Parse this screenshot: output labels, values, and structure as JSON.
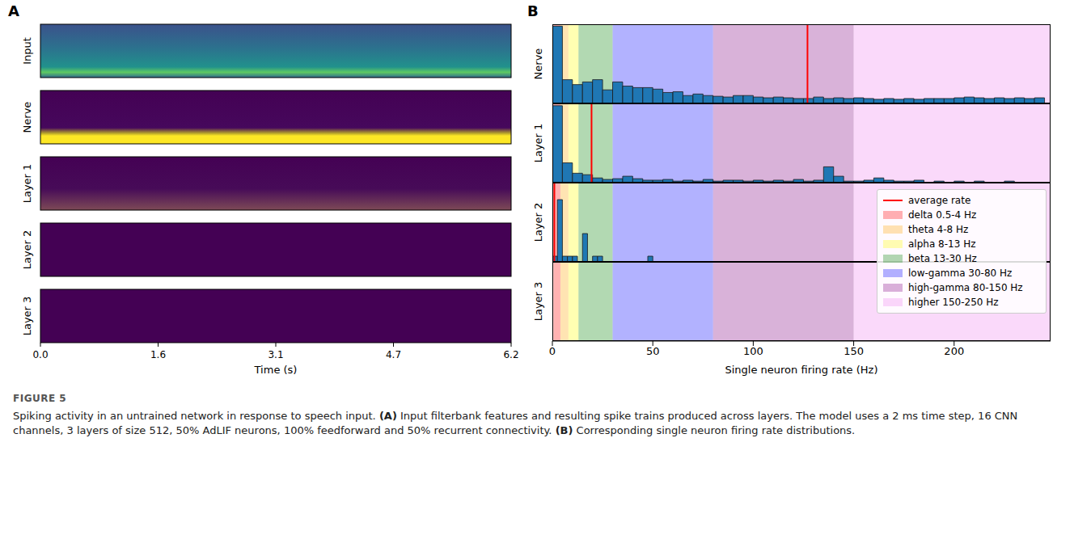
{
  "figure_label": "FIGURE 5",
  "caption": "Spiking activity in an untrained network in response to speech input. (A) Input filterbank features and resulting spike trains produced across layers. The model uses a 2 ms time step, 16 CNN channels, 3 layers of size 512, 50% AdLIF neurons, 100% feedforward and 50% recurrent connectivity. (B) Corresponding single neuron firing rate distributions.",
  "chart_data": [
    {
      "type": "raster",
      "panel_label": "A",
      "rows": [
        "Input",
        "Nerve",
        "Layer 1",
        "Layer 2",
        "Layer 3"
      ],
      "x_label": "Time (s)",
      "xlim": [
        0,
        6.2
      ],
      "xticks": [
        {
          "value": 0,
          "label": "0.0"
        },
        {
          "value": 1.55,
          "label": "1.6"
        },
        3.1,
        {
          "value": 4.65,
          "label": "4.7"
        },
        6.2
      ],
      "tick_labels": "x"
    },
    {
      "type": "histogram",
      "panel_label": "B",
      "x_label": "Single neuron firing rate (Hz)",
      "xlim": [
        0,
        248
      ],
      "xticks": [
        0,
        50,
        100,
        150,
        200
      ],
      "tick_labels": "x",
      "color": "#1f77b4",
      "legend": "right",
      "average_rate_label": "average rate",
      "average_rate_color": "red",
      "bands": [
        {
          "name": "delta 0.5-4 Hz",
          "range": [
            0.5,
            4
          ],
          "color": "red"
        },
        {
          "name": "theta 4-8 Hz",
          "range": [
            4,
            8
          ],
          "color": "orange"
        },
        {
          "name": "alpha 8-13 Hz",
          "range": [
            8,
            13
          ],
          "color": "yellow"
        },
        {
          "name": "beta 13-30 Hz",
          "range": [
            13,
            30
          ],
          "color": "green"
        },
        {
          "name": "low-gamma 30-80 Hz",
          "range": [
            30,
            80
          ],
          "color": "blue"
        },
        {
          "name": "high-gamma 80-150 Hz",
          "range": [
            80,
            150
          ],
          "color": "purple"
        },
        {
          "name": "higher 150-250 Hz",
          "range": [
            150,
            250
          ],
          "color": "violet"
        }
      ],
      "series": [
        {
          "name": "Nerve",
          "ylim": [
            0,
            210
          ],
          "average_rate": 127,
          "bins": [
            0,
            5,
            10,
            15,
            20,
            25,
            30,
            35,
            40,
            45,
            50,
            55,
            60,
            65,
            70,
            75,
            80,
            85,
            90,
            95,
            100,
            105,
            110,
            115,
            120,
            125,
            130,
            135,
            140,
            145,
            150,
            155,
            160,
            165,
            170,
            175,
            180,
            185,
            190,
            195,
            200,
            205,
            210,
            215,
            220,
            225,
            230,
            235,
            240,
            245
          ],
          "counts": [
            205,
            63,
            50,
            57,
            63,
            36,
            57,
            46,
            42,
            42,
            38,
            29,
            31,
            21,
            25,
            21,
            19,
            17,
            21,
            21,
            17,
            15,
            17,
            15,
            13,
            13,
            17,
            13,
            15,
            13,
            15,
            13,
            11,
            13,
            11,
            13,
            11,
            13,
            13,
            13,
            15,
            17,
            15,
            13,
            15,
            13,
            15,
            13,
            15
          ]
        },
        {
          "name": "Layer 1",
          "ylim": [
            0,
            420
          ],
          "average_rate": 19.5,
          "bins": [
            0,
            5,
            10,
            15,
            20,
            25,
            30,
            35,
            40,
            45,
            50,
            55,
            60,
            65,
            70,
            75,
            80,
            85,
            90,
            95,
            100,
            105,
            110,
            115,
            120,
            125,
            130,
            135,
            140,
            145,
            150,
            155,
            160,
            165,
            170,
            175,
            180,
            185,
            190,
            195,
            200,
            205,
            210,
            215,
            220,
            225,
            230,
            235,
            240,
            245
          ],
          "counts": [
            408,
            105,
            50,
            42,
            25,
            17,
            21,
            34,
            21,
            13,
            13,
            17,
            8,
            13,
            8,
            17,
            8,
            13,
            13,
            8,
            13,
            8,
            13,
            8,
            17,
            8,
            13,
            84,
            34,
            8,
            8,
            13,
            25,
            13,
            8,
            8,
            13,
            0,
            8,
            0,
            8,
            0,
            8,
            0,
            0,
            8,
            0,
            0,
            0
          ]
        },
        {
          "name": "Layer 2",
          "ylim": [
            0,
            14
          ],
          "average_rate": 1,
          "bins": [
            0,
            2.5,
            5,
            7.5,
            10,
            12.5,
            15,
            17.5,
            20,
            22.5,
            25,
            27.5,
            30,
            32.5,
            35,
            37.5,
            40,
            42.5,
            45,
            47.5,
            50
          ],
          "counts": [
            1,
            11,
            1,
            1,
            1,
            0,
            5,
            0,
            1,
            1,
            0,
            0,
            0,
            0,
            0,
            0,
            0,
            0,
            0,
            1
          ]
        },
        {
          "name": "Layer 3",
          "ylim": [
            0,
            1
          ]
        }
      ]
    }
  ]
}
